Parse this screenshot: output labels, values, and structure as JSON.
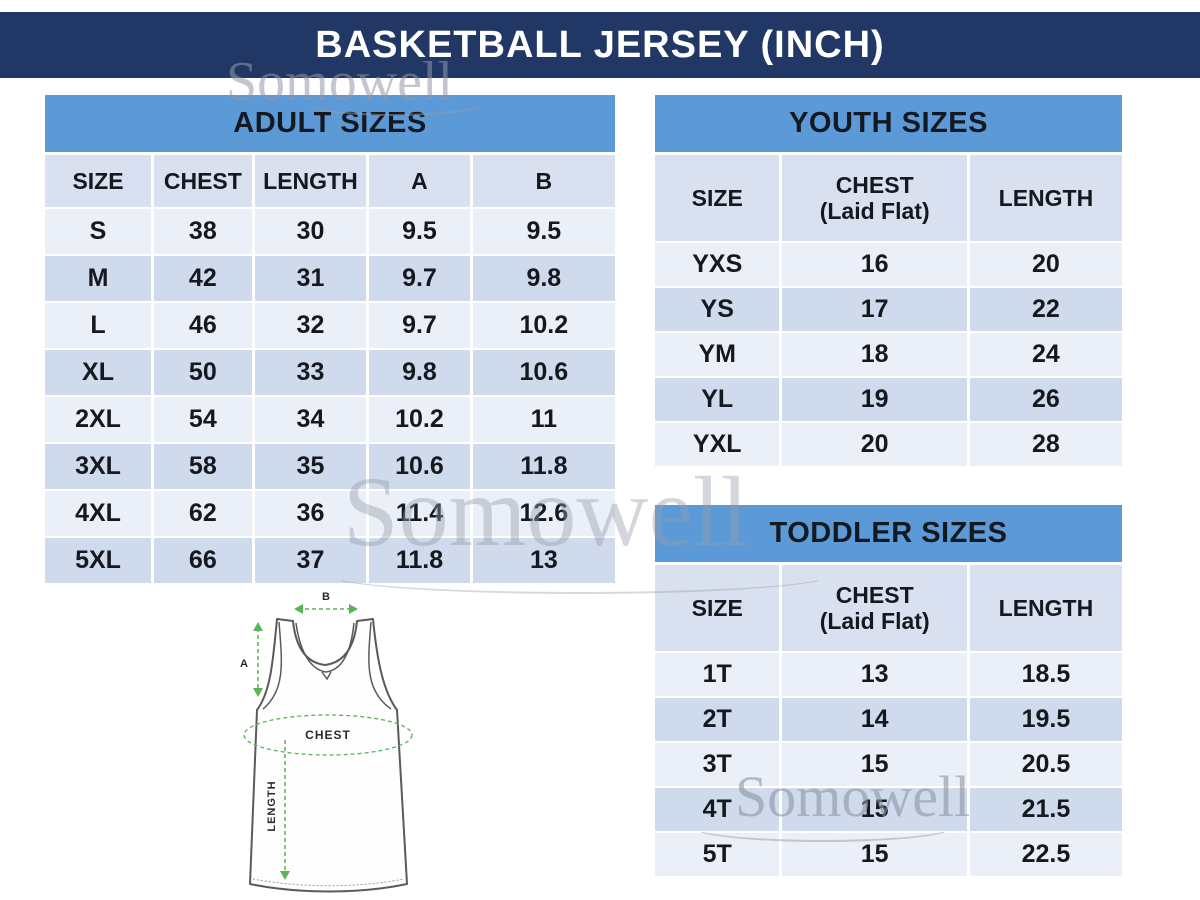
{
  "title": "BASKETBALL JERSEY (INCH)",
  "watermark": {
    "text": "Somowell"
  },
  "colors": {
    "navy": "#213866",
    "header_blue": "#5b9ad7",
    "row_light": "#eaeff8",
    "row_dark": "#cfdaec",
    "column_header": "#d9e0ef",
    "arrow_green": "#57b457"
  },
  "adult": {
    "title": "ADULT SIZES",
    "columns": [
      "SIZE",
      "CHEST",
      "LENGTH",
      "A",
      "B"
    ],
    "rows": [
      [
        "S",
        "38",
        "30",
        "9.5",
        "9.5"
      ],
      [
        "M",
        "42",
        "31",
        "9.7",
        "9.8"
      ],
      [
        "L",
        "46",
        "32",
        "9.7",
        "10.2"
      ],
      [
        "XL",
        "50",
        "33",
        "9.8",
        "10.6"
      ],
      [
        "2XL",
        "54",
        "34",
        "10.2",
        "11"
      ],
      [
        "3XL",
        "58",
        "35",
        "10.6",
        "11.8"
      ],
      [
        "4XL",
        "62",
        "36",
        "11.4",
        "12.6"
      ],
      [
        "5XL",
        "66",
        "37",
        "11.8",
        "13"
      ]
    ]
  },
  "youth": {
    "title": "YOUTH SIZES",
    "columns": [
      {
        "label": "SIZE",
        "sub": ""
      },
      {
        "label": "CHEST",
        "sub": "(Laid Flat)"
      },
      {
        "label": "LENGTH",
        "sub": ""
      }
    ],
    "rows": [
      [
        "YXS",
        "16",
        "20"
      ],
      [
        "YS",
        "17",
        "22"
      ],
      [
        "YM",
        "18",
        "24"
      ],
      [
        "YL",
        "19",
        "26"
      ],
      [
        "YXL",
        "20",
        "28"
      ]
    ]
  },
  "toddler": {
    "title": "TODDLER SIZES",
    "columns": [
      {
        "label": "SIZE",
        "sub": ""
      },
      {
        "label": "CHEST",
        "sub": "(Laid Flat)"
      },
      {
        "label": "LENGTH",
        "sub": ""
      }
    ],
    "rows": [
      [
        "1T",
        "13",
        "18.5"
      ],
      [
        "2T",
        "14",
        "19.5"
      ],
      [
        "3T",
        "15",
        "20.5"
      ],
      [
        "4T",
        "15",
        "21.5"
      ],
      [
        "5T",
        "15",
        "22.5"
      ]
    ]
  },
  "diagram": {
    "a_label": "A",
    "b_label": "B",
    "chest_label": "CHEST",
    "length_label": "LENGTH"
  }
}
